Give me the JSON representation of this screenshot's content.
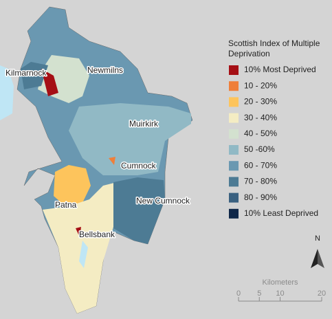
{
  "legend": {
    "title": "Scottish Index of Multiple Deprivation",
    "items": [
      {
        "label": "10% Most Deprived",
        "color": "#a50f15"
      },
      {
        "label": "10 - 20%",
        "color": "#ef7f3a"
      },
      {
        "label": "20 - 30%",
        "color": "#fdc45c"
      },
      {
        "label": "30 - 40%",
        "color": "#f4ecc3"
      },
      {
        "label": "40 - 50%",
        "color": "#d3e1cf"
      },
      {
        "label": "50 -60%",
        "color": "#91b9c5"
      },
      {
        "label": "60 - 70%",
        "color": "#6a98b1"
      },
      {
        "label": "70 - 80%",
        "color": "#4d7b94"
      },
      {
        "label": "80 - 90%",
        "color": "#3a6180"
      },
      {
        "label": "10% Least Deprived",
        "color": "#0f2748"
      }
    ]
  },
  "places": [
    "Kilmarnock",
    "Newmilns",
    "Muirkirk",
    "Cumnock",
    "New Cumnock",
    "Patna",
    "Bellsbank"
  ],
  "north_arrow": "N",
  "scale_bar": {
    "title": "Kilometers",
    "ticks": [
      0,
      5,
      10,
      20
    ]
  }
}
